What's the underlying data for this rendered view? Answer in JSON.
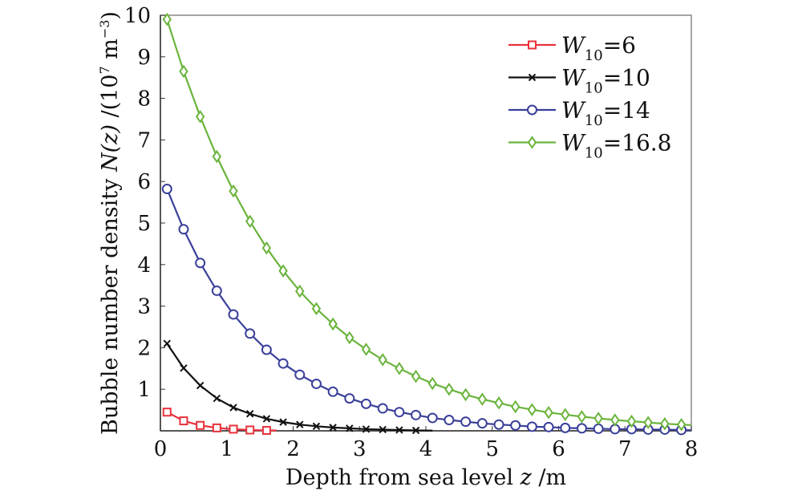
{
  "chart_data": {
    "type": "line",
    "title": "",
    "xlabel": "Depth from sea level z /m",
    "xlabel_parts": {
      "prefix": "Depth from sea level ",
      "var": "z",
      "suffix": " /m"
    },
    "ylabel": "Bubble number density N(z) /(10^7 m^-3)",
    "ylabel_parts": {
      "prefix": "Bubble number density ",
      "var": "N(z)",
      "suffix": " /(10",
      "exp1": "7",
      "mid": " m",
      "exp2": "−3",
      "end": ")"
    },
    "xlim": [
      0,
      8
    ],
    "ylim": [
      0,
      10
    ],
    "xticks": [
      "0",
      "1",
      "2",
      "3",
      "4",
      "5",
      "6",
      "7",
      "8"
    ],
    "yticks": [
      "1",
      "2",
      "3",
      "4",
      "5",
      "6",
      "7",
      "8",
      "9",
      "10"
    ],
    "grid": false,
    "legend_position": "top-right",
    "series": [
      {
        "name": "W10=6",
        "label_main": "W",
        "label_sub": "10",
        "label_val": "=6",
        "color": "#e8323c",
        "marker": "square",
        "x_start": 0.1,
        "x_step": 0.25,
        "line_end_x": 1.75,
        "values": [
          0.45,
          0.24,
          0.13,
          0.07,
          0.04,
          0.02,
          0.01
        ]
      },
      {
        "name": "W10=10",
        "label_main": "W",
        "label_sub": "10",
        "label_val": "=10",
        "color": "#111111",
        "marker": "x",
        "x_start": 0.1,
        "x_step": 0.25,
        "line_end_x": 4.1,
        "values": [
          2.1,
          1.51,
          1.09,
          0.78,
          0.56,
          0.41,
          0.29,
          0.21,
          0.15,
          0.11,
          0.08,
          0.06,
          0.04,
          0.03,
          0.02,
          0.01
        ]
      },
      {
        "name": "W10=14",
        "label_main": "W",
        "label_sub": "10",
        "label_val": "=14",
        "color": "#3a3f9a",
        "marker": "circle",
        "x_start": 0.1,
        "x_step": 0.25,
        "line_end_x": 8,
        "values": [
          5.82,
          4.85,
          4.04,
          3.37,
          2.8,
          2.34,
          1.95,
          1.62,
          1.35,
          1.13,
          0.94,
          0.78,
          0.65,
          0.54,
          0.45,
          0.38,
          0.31,
          0.26,
          0.22,
          0.18,
          0.15,
          0.13,
          0.1,
          0.09,
          0.07,
          0.06,
          0.05,
          0.04,
          0.04,
          0.03,
          0.03,
          0.02
        ]
      },
      {
        "name": "W10=16.8",
        "label_main": "W",
        "label_sub": "10",
        "label_val": "=16.8",
        "color": "#6ab43c",
        "marker": "diamond",
        "x_start": 0.1,
        "x_step": 0.25,
        "line_end_x": 8,
        "values": [
          9.9,
          8.65,
          7.56,
          6.6,
          5.77,
          5.04,
          4.4,
          3.85,
          3.36,
          2.94,
          2.57,
          2.24,
          1.96,
          1.71,
          1.5,
          1.31,
          1.14,
          1.0,
          0.87,
          0.76,
          0.67,
          0.58,
          0.51,
          0.44,
          0.39,
          0.34,
          0.3,
          0.26,
          0.23,
          0.2,
          0.17,
          0.15
        ]
      }
    ]
  }
}
